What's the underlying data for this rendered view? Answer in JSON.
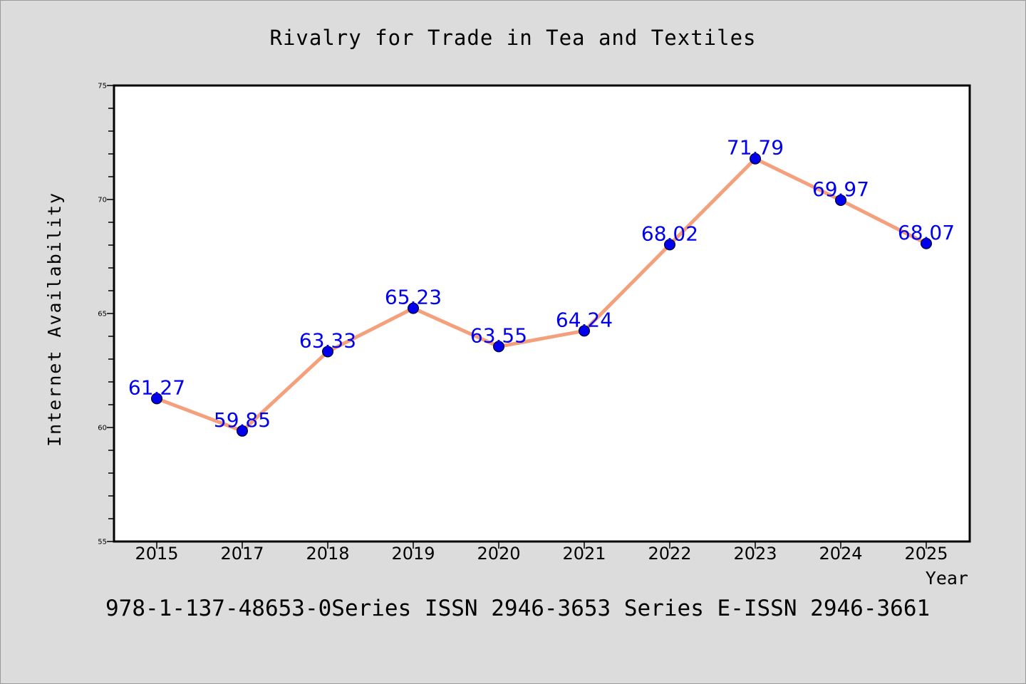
{
  "chart_data": {
    "type": "line",
    "title": "Rivalry for Trade in Tea and Textiles",
    "xlabel": "Year",
    "ylabel": "Internet Availability",
    "categories": [
      "2015",
      "2017",
      "2018",
      "2019",
      "2020",
      "2021",
      "2022",
      "2023",
      "2024",
      "2025"
    ],
    "series": [
      {
        "values": [
          61.27,
          59.85,
          63.33,
          65.23,
          63.55,
          64.24,
          68.02,
          71.79,
          69.97,
          68.07
        ],
        "line_color": "#f4a07c",
        "marker_color": "#0000ee",
        "label_color": "#0000ee"
      }
    ],
    "data_labels": [
      "61.27",
      "59.85",
      "63.33",
      "65.23",
      "63.55",
      "64.24",
      "68.02",
      "71.79",
      "69.97",
      "68.07"
    ],
    "ylim": [
      55,
      75
    ],
    "y_major_ticks": [
      "55",
      "60",
      "65",
      "70",
      "75"
    ],
    "grid": false,
    "legend": "none"
  },
  "footer": {
    "text": "978-1-137-48653-0Series ISSN 2946-3653 Series E-ISSN 2946-3661"
  },
  "colors": {
    "background": "#dcdcdc",
    "plot_background": "#ffffff",
    "axis": "#000000"
  }
}
